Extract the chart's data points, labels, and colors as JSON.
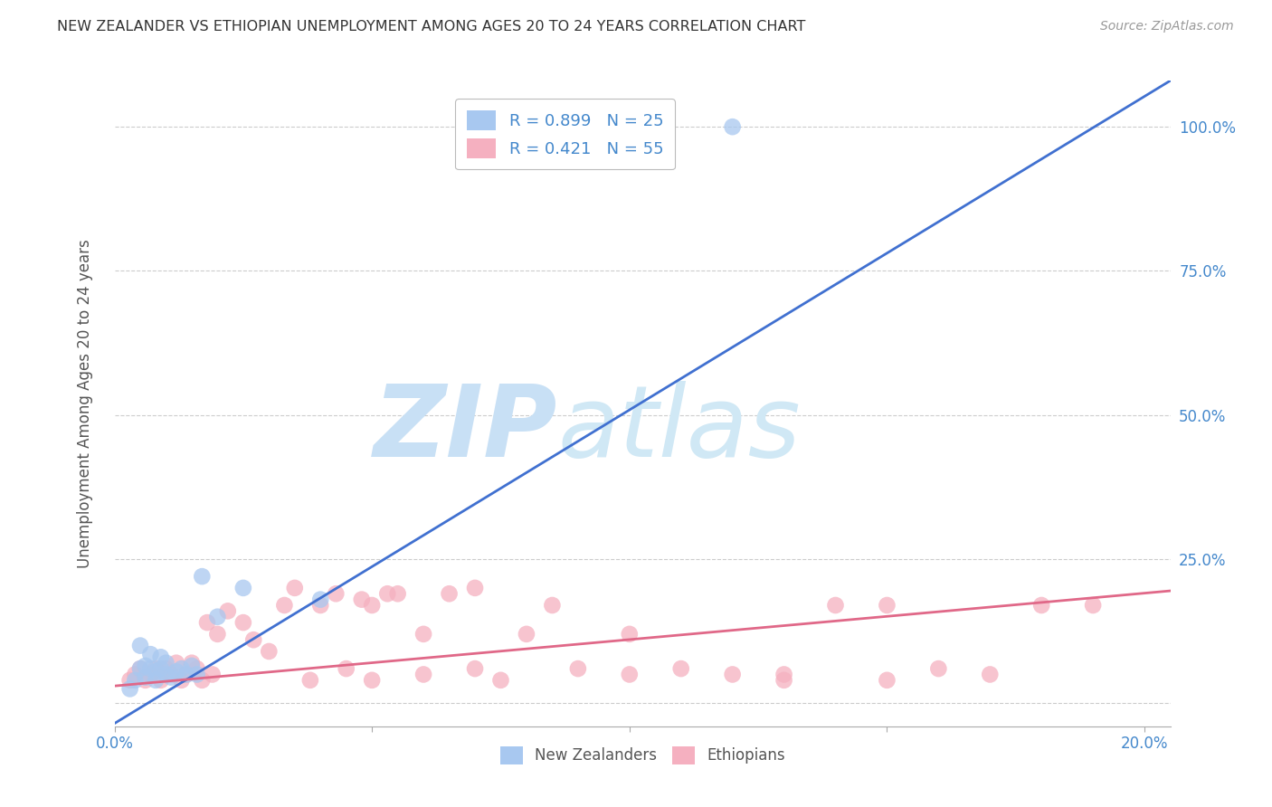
{
  "title": "NEW ZEALANDER VS ETHIOPIAN UNEMPLOYMENT AMONG AGES 20 TO 24 YEARS CORRELATION CHART",
  "source": "Source: ZipAtlas.com",
  "ylabel": "Unemployment Among Ages 20 to 24 years",
  "xlim": [
    0.0,
    0.205
  ],
  "ylim": [
    -0.04,
    1.08
  ],
  "nz_R": 0.899,
  "nz_N": 25,
  "eth_R": 0.421,
  "eth_N": 55,
  "nz_color": "#A8C8F0",
  "eth_color": "#F5B0C0",
  "nz_line_color": "#4070D0",
  "eth_line_color": "#E06888",
  "watermark_zip": "ZIP",
  "watermark_atlas": "atlas",
  "watermark_color_zip": "#C8DFF5",
  "watermark_color_atlas": "#C8DFF5",
  "legend_nz_label": "New Zealanders",
  "legend_eth_label": "Ethiopians",
  "background_color": "#FFFFFF",
  "grid_color": "#CCCCCC",
  "y_ticks": [
    0.0,
    0.25,
    0.5,
    0.75,
    1.0
  ],
  "y_tick_labels": [
    "",
    "25.0%",
    "50.0%",
    "75.0%",
    "100.0%"
  ],
  "x_ticks": [
    0.0,
    0.05,
    0.1,
    0.15,
    0.2
  ],
  "x_tick_labels": [
    "0.0%",
    "",
    "",
    "",
    "20.0%"
  ],
  "nz_line_x0": 0.0,
  "nz_line_y0": -0.035,
  "nz_line_x1": 0.205,
  "nz_line_y1": 1.08,
  "eth_line_x0": 0.0,
  "eth_line_y0": 0.03,
  "eth_line_x1": 0.205,
  "eth_line_y1": 0.195,
  "nz_x": [
    0.003,
    0.004,
    0.005,
    0.005,
    0.006,
    0.006,
    0.007,
    0.007,
    0.008,
    0.008,
    0.009,
    0.009,
    0.01,
    0.01,
    0.011,
    0.012,
    0.013,
    0.014,
    0.015,
    0.016,
    0.017,
    0.02,
    0.025,
    0.04,
    0.12
  ],
  "nz_y": [
    0.025,
    0.04,
    0.06,
    0.1,
    0.045,
    0.065,
    0.06,
    0.085,
    0.04,
    0.055,
    0.06,
    0.08,
    0.05,
    0.07,
    0.045,
    0.055,
    0.06,
    0.05,
    0.065,
    0.05,
    0.22,
    0.15,
    0.2,
    0.18,
    1.0
  ],
  "eth_x": [
    0.003,
    0.004,
    0.005,
    0.006,
    0.007,
    0.008,
    0.009,
    0.01,
    0.011,
    0.012,
    0.013,
    0.014,
    0.015,
    0.016,
    0.017,
    0.018,
    0.019,
    0.02,
    0.022,
    0.025,
    0.027,
    0.03,
    0.033,
    0.035,
    0.038,
    0.04,
    0.043,
    0.045,
    0.048,
    0.05,
    0.053,
    0.055,
    0.06,
    0.065,
    0.07,
    0.075,
    0.08,
    0.085,
    0.09,
    0.1,
    0.11,
    0.12,
    0.13,
    0.14,
    0.15,
    0.16,
    0.17,
    0.18,
    0.19,
    0.05,
    0.06,
    0.07,
    0.1,
    0.13,
    0.15
  ],
  "eth_y": [
    0.04,
    0.05,
    0.06,
    0.04,
    0.05,
    0.06,
    0.04,
    0.06,
    0.05,
    0.07,
    0.04,
    0.05,
    0.07,
    0.06,
    0.04,
    0.14,
    0.05,
    0.12,
    0.16,
    0.14,
    0.11,
    0.09,
    0.17,
    0.2,
    0.04,
    0.17,
    0.19,
    0.06,
    0.18,
    0.17,
    0.19,
    0.19,
    0.12,
    0.19,
    0.06,
    0.04,
    0.12,
    0.17,
    0.06,
    0.05,
    0.06,
    0.05,
    0.05,
    0.17,
    0.17,
    0.06,
    0.05,
    0.17,
    0.17,
    0.04,
    0.05,
    0.2,
    0.12,
    0.04,
    0.04
  ]
}
